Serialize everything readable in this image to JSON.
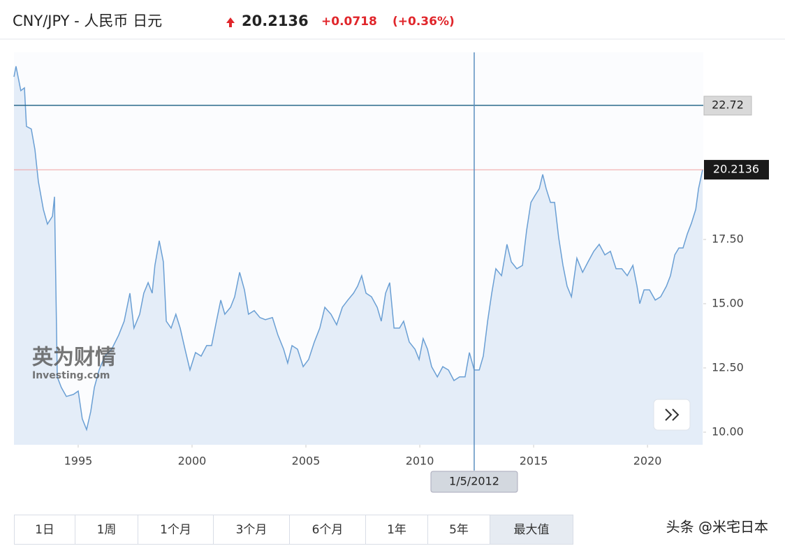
{
  "header": {
    "title": "CNY/JPY - 人民币 日元",
    "change": "+0.0718",
    "change_pct": "(+0.36%)"
  },
  "watermark": {
    "brand": "英为财情",
    "site": "Investing.com"
  },
  "footer": "头条 @米宅日本",
  "range_buttons": [
    "1日",
    "1周",
    "1个月",
    "3个月",
    "6个月",
    "1年",
    "5年",
    "最大值"
  ],
  "active_button": 7,
  "chart_data": {
    "type": "line",
    "x": [
      1992.18,
      1992.27,
      1992.48,
      1992.64,
      1992.73,
      1992.94,
      1993.1,
      1993.25,
      1993.47,
      1993.65,
      1993.87,
      1993.96,
      1994.08,
      1994.26,
      1994.48,
      1994.79,
      1995.0,
      1995.18,
      1995.37,
      1995.55,
      1995.71,
      1995.92,
      1996.17,
      1996.47,
      1996.78,
      1997.02,
      1997.27,
      1997.45,
      1997.7,
      1997.88,
      1998.07,
      1998.25,
      1998.37,
      1998.56,
      1998.74,
      1998.87,
      1999.08,
      1999.29,
      1999.48,
      1999.69,
      1999.91,
      2000.15,
      2000.4,
      2000.64,
      2000.86,
      2001.07,
      2001.26,
      2001.44,
      2001.69,
      2001.87,
      2002.09,
      2002.3,
      2002.48,
      2002.73,
      2002.98,
      2003.22,
      2003.53,
      2003.77,
      2004.02,
      2004.2,
      2004.39,
      2004.63,
      2004.88,
      2005.12,
      2005.37,
      2005.61,
      2005.83,
      2006.1,
      2006.35,
      2006.6,
      2006.84,
      2007.09,
      2007.27,
      2007.45,
      2007.64,
      2007.88,
      2008.13,
      2008.31,
      2008.5,
      2008.68,
      2008.87,
      2009.11,
      2009.29,
      2009.54,
      2009.79,
      2009.97,
      2010.15,
      2010.34,
      2010.52,
      2010.77,
      2011.01,
      2011.26,
      2011.5,
      2011.75,
      2011.99,
      2012.18,
      2012.39,
      2012.61,
      2012.79,
      2012.98,
      2013.16,
      2013.34,
      2013.59,
      2013.83,
      2014.02,
      2014.26,
      2014.51,
      2014.69,
      2014.88,
      2015.06,
      2015.25,
      2015.4,
      2015.55,
      2015.74,
      2015.92,
      2016.1,
      2016.29,
      2016.47,
      2016.66,
      2016.9,
      2017.15,
      2017.39,
      2017.64,
      2017.88,
      2018.13,
      2018.37,
      2018.62,
      2018.87,
      2019.11,
      2019.36,
      2019.54,
      2019.66,
      2019.85,
      2020.09,
      2020.34,
      2020.58,
      2020.83,
      2021.01,
      2021.2,
      2021.38,
      2021.56,
      2021.75,
      2021.93,
      2022.12,
      2022.24,
      2022.42
    ],
    "values": [
      23.83,
      24.24,
      23.29,
      23.4,
      21.9,
      21.8,
      21.0,
      19.76,
      18.67,
      18.1,
      18.4,
      19.16,
      12.15,
      11.74,
      11.39,
      11.47,
      11.6,
      10.52,
      10.1,
      10.8,
      11.74,
      12.42,
      12.96,
      13.23,
      13.78,
      14.32,
      15.41,
      14.05,
      14.59,
      15.41,
      15.82,
      15.41,
      16.49,
      17.45,
      16.63,
      14.32,
      14.05,
      14.59,
      14.05,
      13.23,
      12.42,
      13.1,
      12.96,
      13.37,
      13.37,
      14.32,
      15.14,
      14.59,
      14.86,
      15.27,
      16.22,
      15.54,
      14.59,
      14.73,
      14.46,
      14.38,
      14.46,
      13.78,
      13.23,
      12.69,
      13.37,
      13.23,
      12.55,
      12.83,
      13.51,
      14.05,
      14.86,
      14.59,
      14.18,
      14.86,
      15.14,
      15.41,
      15.68,
      16.09,
      15.41,
      15.27,
      14.86,
      14.32,
      15.41,
      15.82,
      14.05,
      14.05,
      14.32,
      13.51,
      13.23,
      12.83,
      13.64,
      13.23,
      12.55,
      12.15,
      12.55,
      12.42,
      12.01,
      12.15,
      12.15,
      13.1,
      12.42,
      12.42,
      12.96,
      14.32,
      15.41,
      16.36,
      16.09,
      17.31,
      16.63,
      16.36,
      16.49,
      17.85,
      18.94,
      19.21,
      19.48,
      20.03,
      19.48,
      18.94,
      18.94,
      17.58,
      16.49,
      15.68,
      15.27,
      16.77,
      16.22,
      16.63,
      17.04,
      17.31,
      16.9,
      17.04,
      16.36,
      16.36,
      16.09,
      16.49,
      15.68,
      15.0,
      15.54,
      15.54,
      15.14,
      15.27,
      15.68,
      16.09,
      16.9,
      17.17,
      17.17,
      17.72,
      18.13,
      18.67,
      19.48,
      20.2136
    ],
    "color": "#6a9fd4",
    "xlim": [
      1992.18,
      2022.45
    ],
    "xticks": [
      1995,
      2000,
      2005,
      2010,
      2015,
      2020
    ],
    "ylim": [
      9.51,
      24.78
    ],
    "yticks": [
      {
        "value": 10,
        "label": "10.00"
      },
      {
        "value": 12.5,
        "label": "12.50"
      },
      {
        "value": 15,
        "label": "15.00"
      },
      {
        "value": 17.5,
        "label": "17.50"
      }
    ],
    "current_price": 20.2136,
    "crosshair": {
      "x": 2012.39,
      "x_label": "1/5/2012",
      "y": 22.72
    }
  }
}
